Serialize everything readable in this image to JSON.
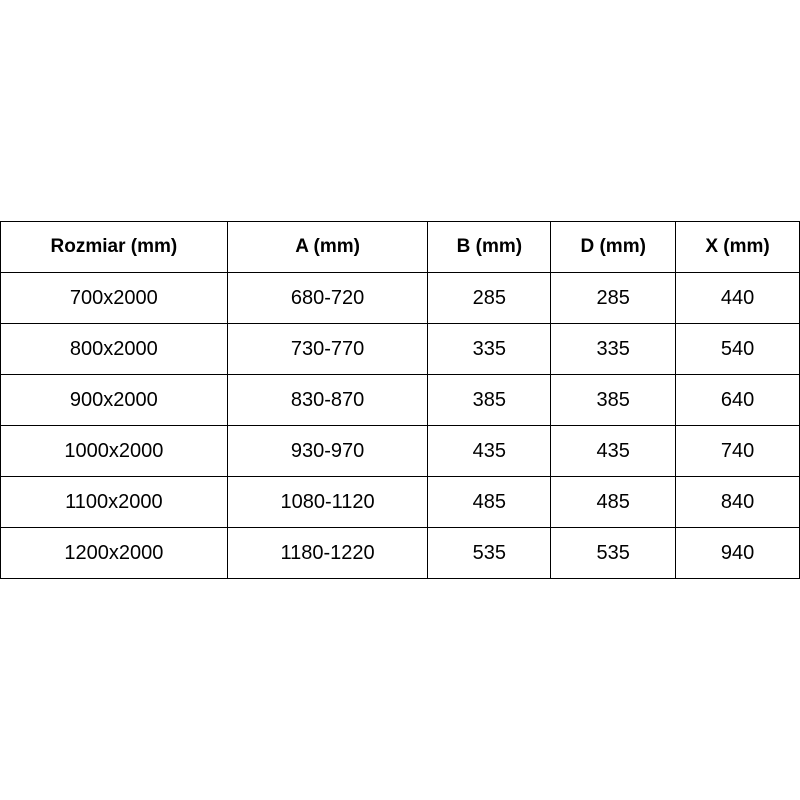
{
  "table": {
    "headers": [
      "Rozmiar (mm)",
      "A (mm)",
      "B (mm)",
      "D (mm)",
      "X (mm)"
    ],
    "rows": [
      [
        "700x2000",
        "680-720",
        "285",
        "285",
        "440"
      ],
      [
        "800x2000",
        "730-770",
        "335",
        "335",
        "540"
      ],
      [
        "900x2000",
        "830-870",
        "385",
        "385",
        "640"
      ],
      [
        "1000x2000",
        "930-970",
        "435",
        "435",
        "740"
      ],
      [
        "1100x2000",
        "1080-1120",
        "485",
        "485",
        "840"
      ],
      [
        "1200x2000",
        "1180-1220",
        "535",
        "535",
        "940"
      ]
    ]
  }
}
